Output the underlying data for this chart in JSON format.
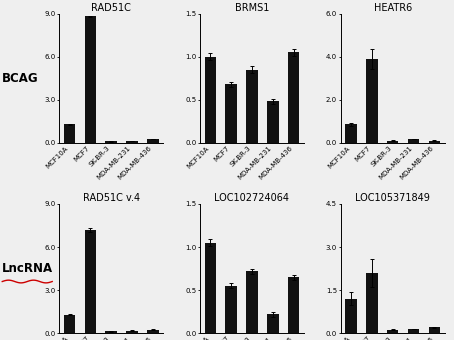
{
  "row_labels": [
    "BCAG",
    "LncRNA"
  ],
  "col_titles": [
    [
      "RAD51C",
      "BRMS1",
      "HEATR6"
    ],
    [
      "RAD51C v.4",
      "LOC102724064",
      "LOC105371849"
    ]
  ],
  "categories": [
    "MCF10A",
    "MCF7",
    "SK-BR-3",
    "MDA-MB-231",
    "MDA-MB-436"
  ],
  "ylims": [
    [
      [
        0,
        9.0
      ],
      [
        0,
        1.5
      ],
      [
        0,
        6.0
      ]
    ],
    [
      [
        0,
        9.0
      ],
      [
        0,
        1.5
      ],
      [
        0,
        4.5
      ]
    ]
  ],
  "yticks": [
    [
      [
        0.0,
        3.0,
        6.0,
        9.0
      ],
      [
        0.0,
        0.5,
        1.0,
        1.5
      ],
      [
        0.0,
        2.0,
        4.0,
        6.0
      ]
    ],
    [
      [
        0.0,
        3.0,
        6.0,
        9.0
      ],
      [
        0.0,
        0.5,
        1.0,
        1.5
      ],
      [
        0.0,
        1.5,
        3.0,
        4.5
      ]
    ]
  ],
  "values": [
    [
      [
        1.3,
        8.8,
        0.1,
        0.12,
        0.25
      ],
      [
        1.0,
        0.68,
        0.85,
        0.48,
        1.05
      ],
      [
        0.85,
        3.9,
        0.1,
        0.18,
        0.1
      ]
    ],
    [
      [
        1.3,
        7.2,
        0.12,
        0.18,
        0.25
      ],
      [
        1.05,
        0.55,
        0.72,
        0.22,
        0.65
      ],
      [
        1.2,
        2.1,
        0.12,
        0.15,
        0.2
      ]
    ]
  ],
  "errors": [
    [
      [
        0.04,
        0.04,
        0.01,
        0.01,
        0.01
      ],
      [
        0.04,
        0.03,
        0.04,
        0.03,
        0.04
      ],
      [
        0.08,
        0.45,
        0.01,
        0.01,
        0.01
      ]
    ],
    [
      [
        0.04,
        0.12,
        0.01,
        0.01,
        0.01
      ],
      [
        0.04,
        0.03,
        0.03,
        0.03,
        0.03
      ],
      [
        0.22,
        0.5,
        0.01,
        0.01,
        0.01
      ]
    ]
  ],
  "bar_color": "#111111",
  "bar_width": 0.55,
  "background_color": "#efefef",
  "plot_bg": "#efefef",
  "title_fontsize": 7.0,
  "tick_fontsize": 5.0,
  "row_label_fontsize": 8.5,
  "lncrna_underline_color": "#cc0000"
}
